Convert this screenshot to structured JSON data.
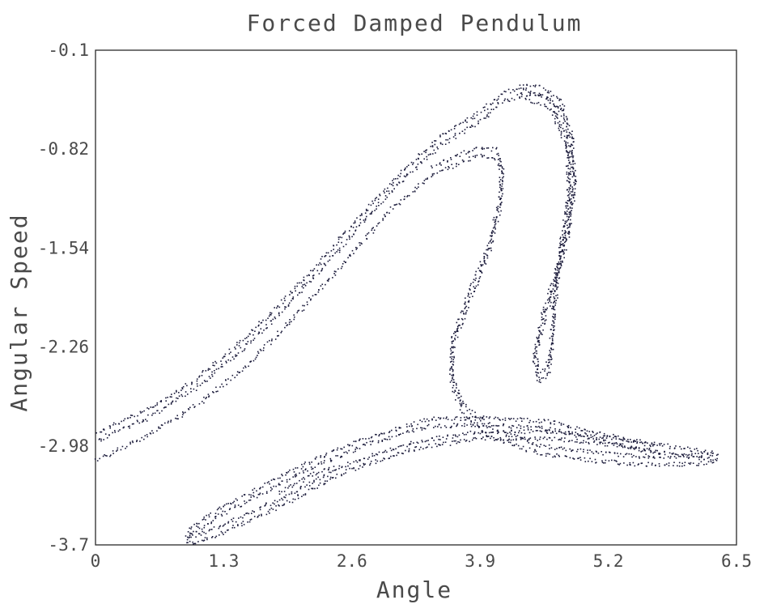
{
  "chart_data": {
    "type": "scatter",
    "title": "Forced Damped Pendulum",
    "xlabel": "Angle",
    "ylabel": "Angular Speed",
    "xlim": [
      0,
      6.5
    ],
    "ylim": [
      -3.7,
      -0.1
    ],
    "xticks": [
      "0",
      "1.3",
      "2.6",
      "3.9",
      "5.2",
      "6.5"
    ],
    "yticks": [
      "-0.1",
      "-0.82",
      "-1.54",
      "-2.26",
      "-2.98",
      "-3.7"
    ],
    "grid": false,
    "marker_color": "#1a1a3a",
    "series": [
      {
        "strands": [
          {
            "offset": [
              0,
              0
            ],
            "points": [
              [
                0,
                -2.88
              ],
              [
                0.5,
                -2.72
              ],
              [
                1.0,
                -2.5
              ],
              [
                1.5,
                -2.2
              ],
              [
                2.0,
                -1.85
              ],
              [
                2.5,
                -1.45
              ],
              [
                3.0,
                -1.05
              ],
              [
                3.5,
                -0.72
              ],
              [
                3.9,
                -0.55
              ],
              [
                4.1,
                -0.42
              ],
              [
                4.3,
                -0.36
              ],
              [
                4.5,
                -0.36
              ],
              [
                4.7,
                -0.45
              ],
              [
                4.82,
                -0.7
              ],
              [
                4.85,
                -1.05
              ],
              [
                4.78,
                -1.4
              ],
              [
                4.65,
                -1.75
              ],
              [
                4.52,
                -2.05
              ],
              [
                4.45,
                -2.3
              ],
              [
                4.48,
                -2.45
              ],
              [
                4.58,
                -2.4
              ],
              [
                4.62,
                -2.2
              ],
              [
                4.65,
                -1.9
              ],
              [
                4.72,
                -1.5
              ],
              [
                4.8,
                -1.1
              ],
              [
                4.78,
                -0.75
              ],
              [
                4.6,
                -0.45
              ],
              [
                4.3,
                -0.37
              ]
            ]
          },
          {
            "offset": [
              0,
              -0.06
            ],
            "points": [
              [
                0,
                -2.88
              ],
              [
                0.5,
                -2.72
              ],
              [
                1.0,
                -2.5
              ],
              [
                1.5,
                -2.2
              ],
              [
                2.0,
                -1.85
              ],
              [
                2.5,
                -1.45
              ],
              [
                3.0,
                -1.05
              ],
              [
                3.5,
                -0.72
              ],
              [
                3.9,
                -0.55
              ],
              [
                4.1,
                -0.42
              ],
              [
                4.3,
                -0.36
              ],
              [
                4.5,
                -0.36
              ],
              [
                4.7,
                -0.45
              ],
              [
                4.82,
                -0.7
              ],
              [
                4.85,
                -1.05
              ],
              [
                4.78,
                -1.4
              ],
              [
                4.65,
                -1.75
              ],
              [
                4.52,
                -2.05
              ],
              [
                4.45,
                -2.3
              ],
              [
                4.48,
                -2.45
              ],
              [
                4.58,
                -2.4
              ],
              [
                4.62,
                -2.2
              ],
              [
                4.65,
                -1.9
              ],
              [
                4.72,
                -1.5
              ],
              [
                4.8,
                -1.1
              ],
              [
                4.78,
                -0.75
              ],
              [
                4.6,
                -0.45
              ],
              [
                4.3,
                -0.37
              ]
            ]
          },
          {
            "offset": [
              0,
              -0.13
            ],
            "points": [
              [
                0,
                -2.95
              ],
              [
                0.5,
                -2.78
              ],
              [
                1.0,
                -2.56
              ],
              [
                1.5,
                -2.28
              ],
              [
                2.0,
                -1.92
              ],
              [
                2.5,
                -1.52
              ],
              [
                3.0,
                -1.12
              ],
              [
                3.4,
                -0.88
              ],
              [
                3.7,
                -0.78
              ],
              [
                3.9,
                -0.73
              ],
              [
                4.05,
                -0.75
              ],
              [
                4.12,
                -0.85
              ],
              [
                4.1,
                -1.1
              ],
              [
                3.98,
                -1.45
              ],
              [
                3.78,
                -1.8
              ],
              [
                3.62,
                -2.1
              ],
              [
                3.6,
                -2.38
              ],
              [
                3.72,
                -2.6
              ],
              [
                4.0,
                -2.78
              ],
              [
                4.5,
                -2.9
              ],
              [
                5.0,
                -2.95
              ],
              [
                5.5,
                -2.98
              ],
              [
                6.0,
                -2.98
              ],
              [
                6.3,
                -2.96
              ]
            ]
          },
          {
            "offset": [
              0,
              -0.07
            ],
            "points": [
              [
                3.4,
                -0.88
              ],
              [
                3.7,
                -0.78
              ],
              [
                3.9,
                -0.73
              ],
              [
                4.05,
                -0.75
              ],
              [
                4.12,
                -0.85
              ],
              [
                4.1,
                -1.1
              ],
              [
                3.98,
                -1.45
              ],
              [
                3.78,
                -1.8
              ],
              [
                3.62,
                -2.1
              ],
              [
                3.6,
                -2.38
              ],
              [
                3.72,
                -2.6
              ],
              [
                4.0,
                -2.78
              ],
              [
                4.5,
                -2.9
              ],
              [
                5.0,
                -2.95
              ],
              [
                5.5,
                -2.98
              ],
              [
                6.0,
                -2.98
              ],
              [
                6.3,
                -2.96
              ]
            ]
          },
          {
            "offset": [
              0,
              0
            ],
            "points": [
              [
                5.7,
                -2.98
              ],
              [
                5.2,
                -2.9
              ],
              [
                4.6,
                -2.8
              ],
              [
                4.0,
                -2.77
              ],
              [
                3.4,
                -2.78
              ],
              [
                2.8,
                -2.9
              ],
              [
                2.2,
                -3.08
              ],
              [
                1.6,
                -3.3
              ],
              [
                1.2,
                -3.45
              ],
              [
                0.95,
                -3.58
              ],
              [
                0.92,
                -3.63
              ],
              [
                1.05,
                -3.62
              ],
              [
                1.4,
                -3.52
              ],
              [
                1.9,
                -3.35
              ],
              [
                2.5,
                -3.12
              ],
              [
                3.2,
                -2.95
              ],
              [
                3.9,
                -2.87
              ],
              [
                4.6,
                -2.87
              ],
              [
                5.3,
                -2.92
              ],
              [
                6.0,
                -3.0
              ],
              [
                6.3,
                -3.03
              ]
            ]
          },
          {
            "offset": [
              0,
              -0.05
            ],
            "points": [
              [
                5.7,
                -2.98
              ],
              [
                5.2,
                -2.9
              ],
              [
                4.6,
                -2.8
              ],
              [
                4.0,
                -2.77
              ],
              [
                3.4,
                -2.78
              ],
              [
                2.8,
                -2.9
              ],
              [
                2.2,
                -3.08
              ],
              [
                1.6,
                -3.3
              ],
              [
                1.2,
                -3.45
              ],
              [
                0.95,
                -3.58
              ],
              [
                0.92,
                -3.63
              ],
              [
                1.05,
                -3.62
              ],
              [
                1.4,
                -3.52
              ],
              [
                1.9,
                -3.35
              ],
              [
                2.5,
                -3.12
              ],
              [
                3.2,
                -2.95
              ],
              [
                3.9,
                -2.87
              ],
              [
                4.6,
                -2.87
              ],
              [
                5.3,
                -2.92
              ],
              [
                6.0,
                -3.0
              ],
              [
                6.3,
                -3.03
              ]
            ]
          },
          {
            "offset": [
              0,
              0
            ],
            "points": [
              [
                1.85,
                -3.32
              ],
              [
                2.1,
                -3.22
              ],
              [
                2.4,
                -3.12
              ]
            ]
          }
        ],
        "dots_per_unit": 42
      }
    ]
  }
}
